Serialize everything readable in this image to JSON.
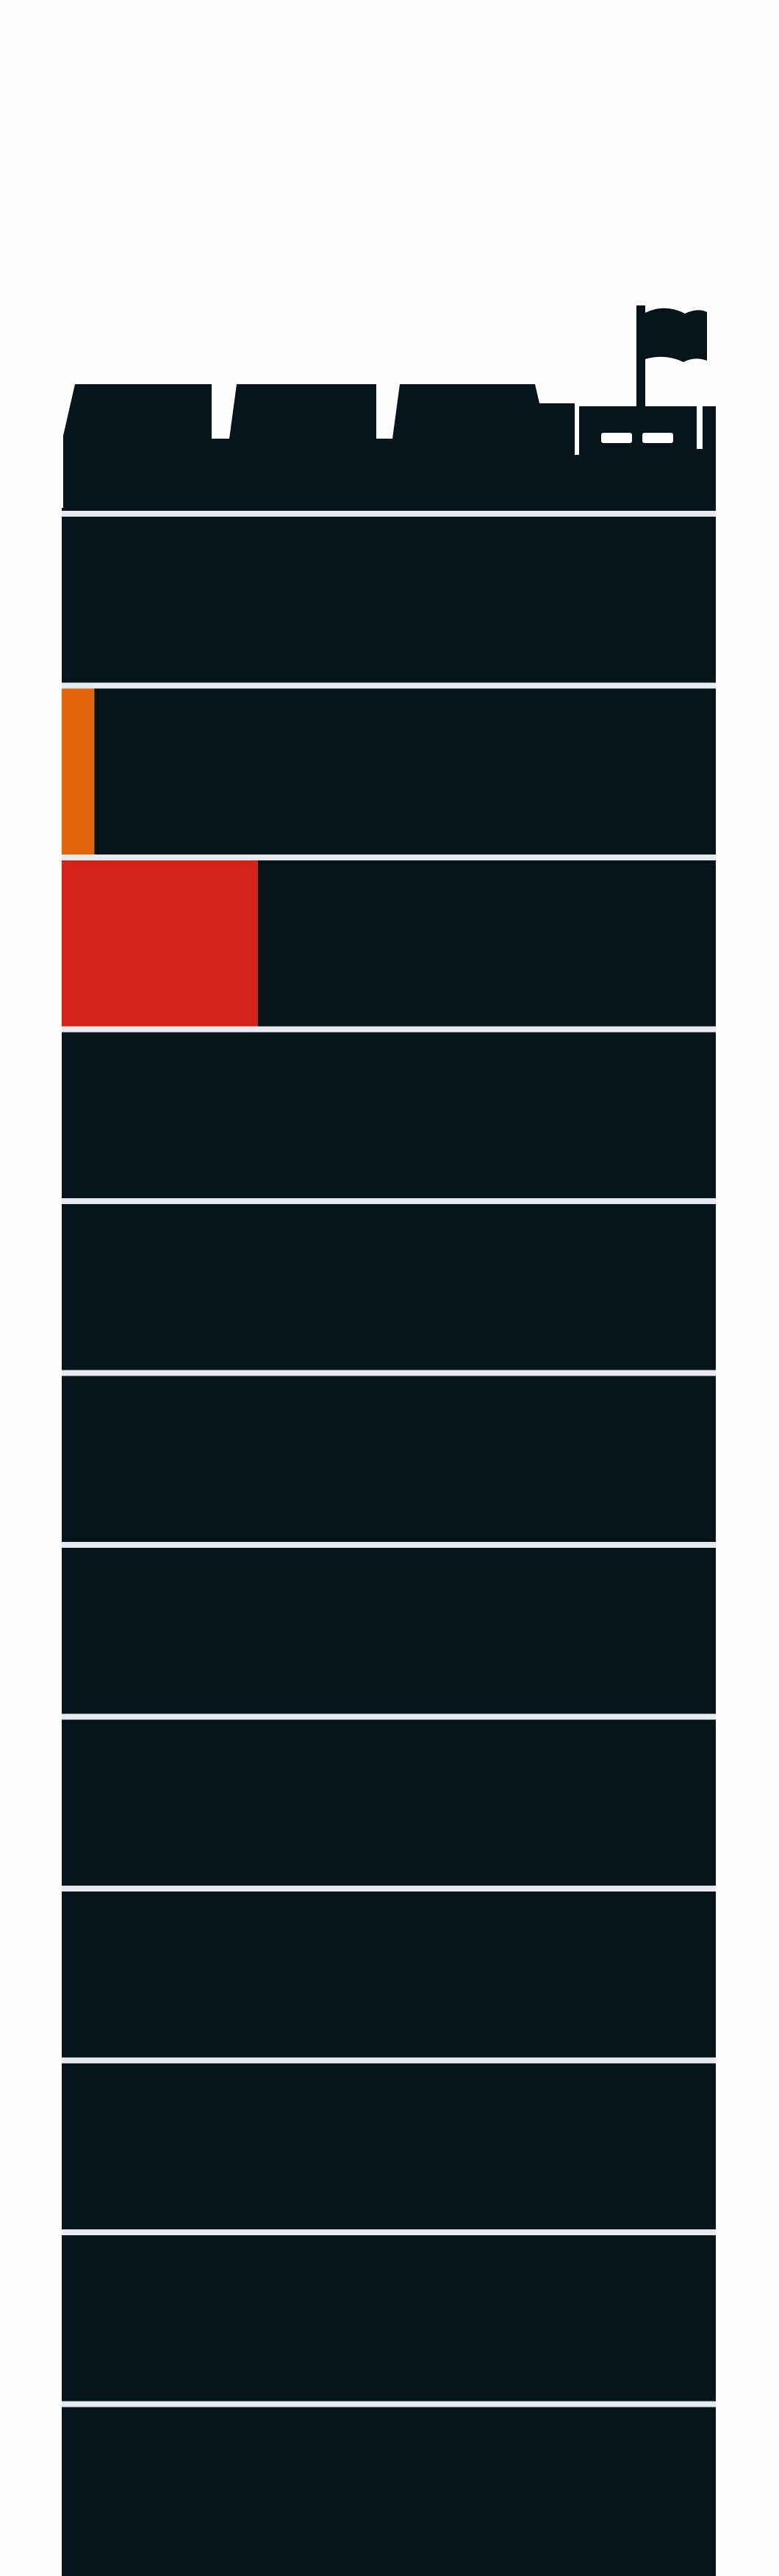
{
  "colors": {
    "page_background": "#fdfdfd",
    "tower_fill": "#06141b",
    "row_divider": "#e6e9ee",
    "flag_fill": "#06141b",
    "windows": "#ffffff"
  },
  "tower": {
    "icon": "castle-tower-with-flag",
    "row_count": 12,
    "rows": [
      {
        "fill_fraction": 0.0,
        "fill_color": ""
      },
      {
        "fill_fraction": 0.05,
        "fill_color": "#e5650c"
      },
      {
        "fill_fraction": 0.3,
        "fill_color": "#d5231a"
      },
      {
        "fill_fraction": 0.0,
        "fill_color": ""
      },
      {
        "fill_fraction": 0.0,
        "fill_color": ""
      },
      {
        "fill_fraction": 0.0,
        "fill_color": ""
      },
      {
        "fill_fraction": 0.0,
        "fill_color": ""
      },
      {
        "fill_fraction": 0.0,
        "fill_color": ""
      },
      {
        "fill_fraction": 0.0,
        "fill_color": ""
      },
      {
        "fill_fraction": 0.0,
        "fill_color": ""
      },
      {
        "fill_fraction": 0.0,
        "fill_color": ""
      },
      {
        "fill_fraction": 0.0,
        "fill_color": ""
      }
    ]
  }
}
